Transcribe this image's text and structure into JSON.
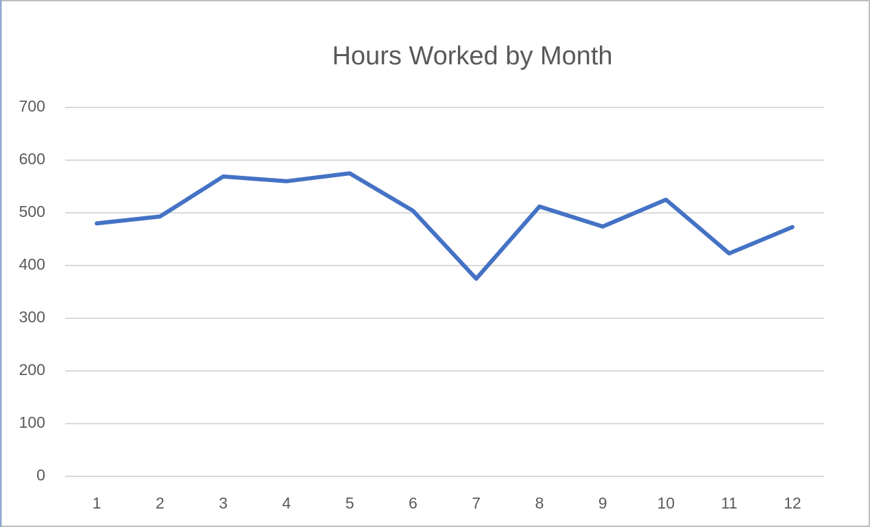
{
  "chart_data": {
    "type": "line",
    "title": "Hours Worked by Month",
    "categories": [
      "1",
      "2",
      "3",
      "4",
      "5",
      "6",
      "7",
      "8",
      "9",
      "10",
      "11",
      "12"
    ],
    "series": [
      {
        "name": "Hours",
        "color": "#4472c4",
        "values": [
          480,
          493,
          569,
          560,
          575,
          504,
          375,
          512,
          474,
          525,
          423,
          473
        ]
      }
    ],
    "ylim": [
      0,
      700
    ],
    "yticks": [
      0,
      100,
      200,
      300,
      400,
      500,
      600,
      700
    ],
    "grid": true
  }
}
